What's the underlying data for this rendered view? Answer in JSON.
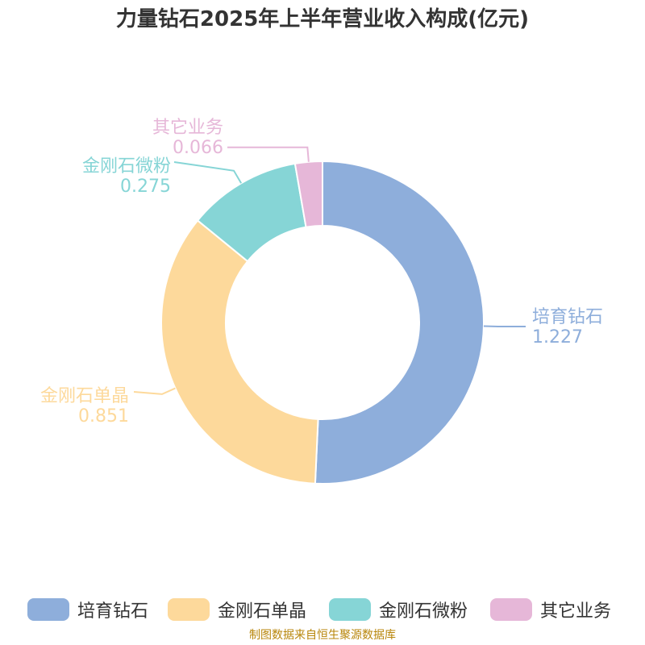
{
  "chart_data": {
    "type": "pie",
    "title": "力量钻石2025年上半年营业收入构成(亿元)",
    "categories": [
      "培育钻石",
      "金刚石单晶",
      "金刚石微粉",
      "其它业务"
    ],
    "values": [
      1.227,
      0.851,
      0.275,
      0.066
    ],
    "value_labels": [
      "1.227",
      "0.851",
      "0.275",
      "0.066"
    ],
    "colors": [
      "#8eaedb",
      "#fdd99b",
      "#86d5d6",
      "#e6b7d8"
    ],
    "legend_position": "bottom",
    "donut": true
  },
  "source": "制图数据来自恒生聚源数据库"
}
